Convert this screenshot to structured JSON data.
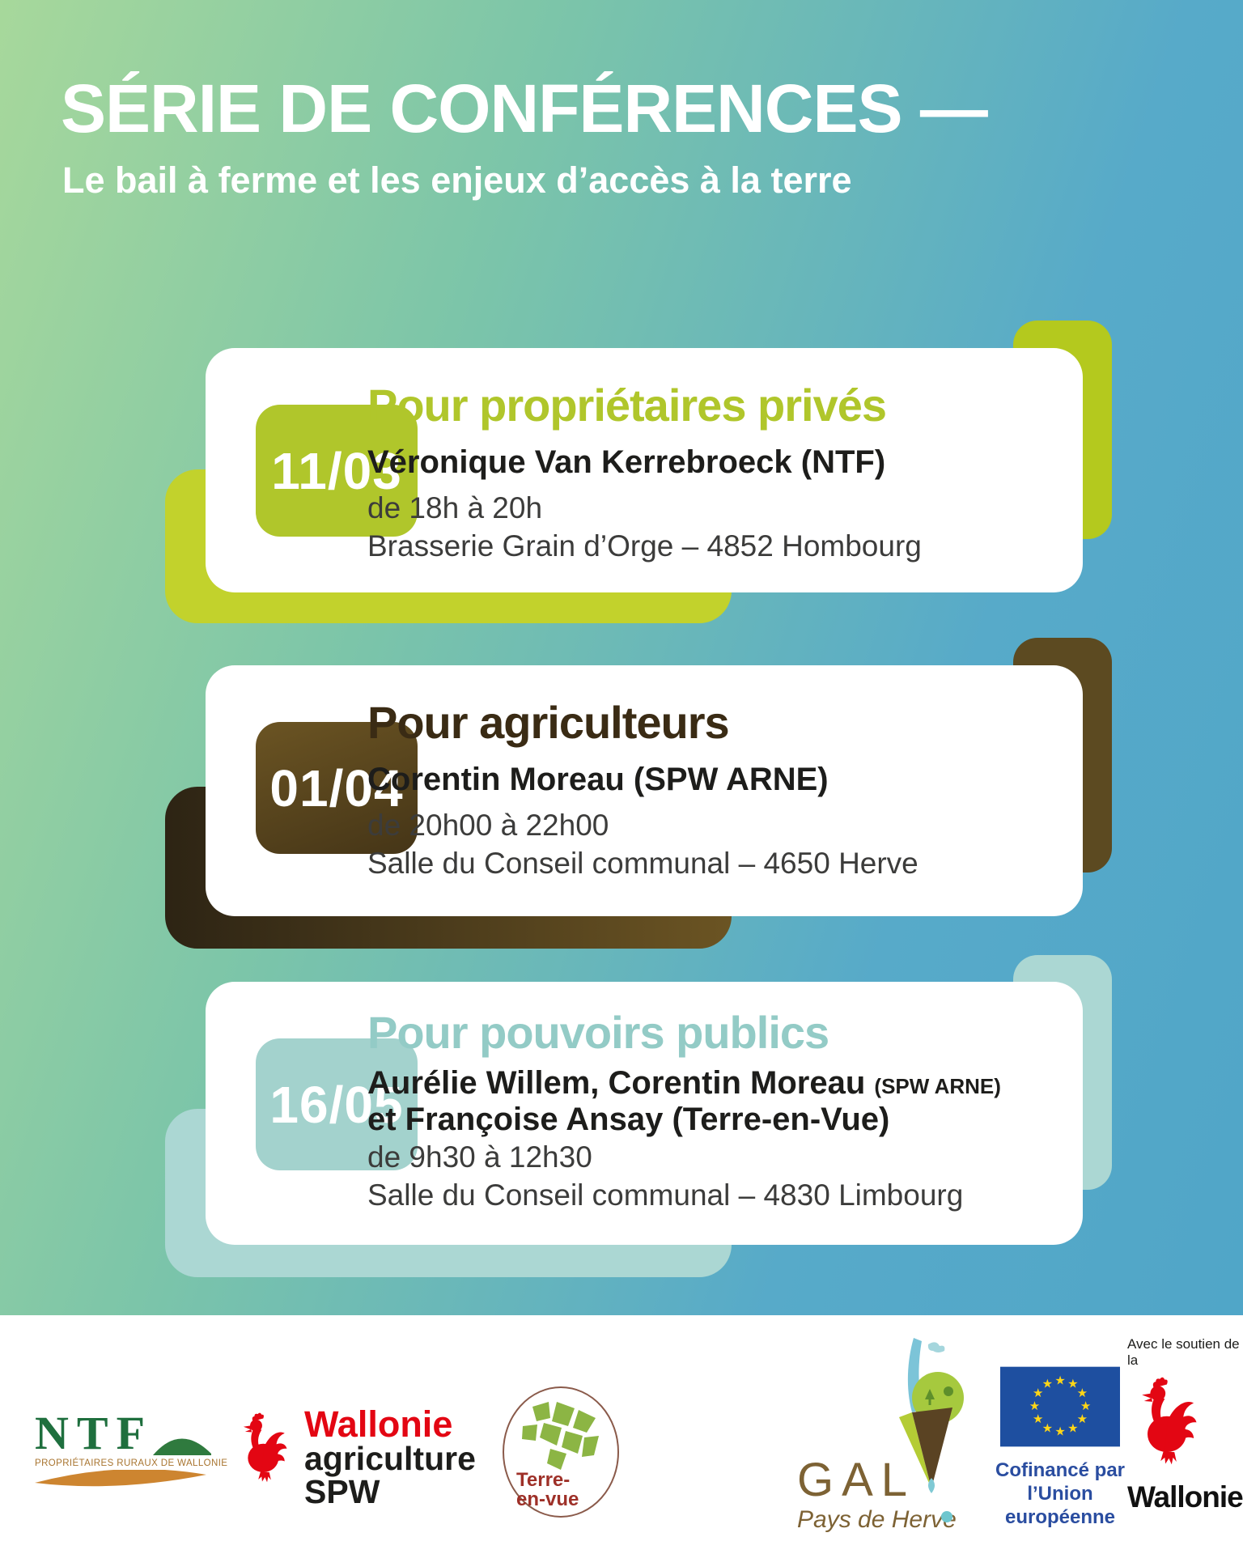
{
  "poster": {
    "title": "SÉRIE DE CONFÉRENCES —",
    "subtitle": "Le bail à ferme et les enjeux d’accès à la terre"
  },
  "cards": [
    {
      "date": "11/03",
      "title": "Pour propriétaires privés",
      "speaker": "Véronique Van Kerrebroeck (NTF)",
      "time": "de 18h à 20h",
      "place": "Brasserie Grain d’Orge – 4852 Hombourg",
      "accent_color": "#b0c62b"
    },
    {
      "date": "01/04",
      "title": "Pour agriculteurs",
      "speaker": "Corentin Moreau (SPW ARNE)",
      "time": "de 20h00 à 22h00",
      "place": "Salle du Conseil communal – 4650 Herve",
      "accent_color": "#53411e"
    },
    {
      "date": "16/05",
      "title": "Pour pouvoirs publics",
      "speaker_line1": "Aurélie Willem, Corentin Moreau",
      "speaker_line1_suffix": "(SPW ARNE)",
      "speaker_line2": "et Françoise Ansay (Terre-en-Vue)",
      "time": "de 9h30 à 12h30",
      "place": "Salle du Conseil communal –  4830 Limbourg",
      "accent_color": "#a2d1cc"
    }
  ],
  "footer": {
    "ntf": {
      "name": "NTF",
      "tagline": "PROPRIÉTAIRES RURAUX DE WALLONIE"
    },
    "spw": {
      "region": "Wallonie",
      "dept": "agriculture",
      "org": "SPW"
    },
    "terre_en_vue": {
      "line1": "Terre-",
      "line2": "en-vue"
    },
    "gal": {
      "name": "GAL",
      "sub": "Pays de Herve"
    },
    "eu": {
      "line1": "Cofinancé par",
      "line2": "l’Union européenne",
      "star_glyph": "★"
    },
    "wallonie": {
      "support_line1": "Avec le soutien de",
      "support_line2": "la",
      "name": "Wallonie"
    }
  },
  "colors": {
    "background_green": "#a7d89b",
    "background_blue": "#4fa5c8",
    "lime": "#b0c62b",
    "brown": "#53411e",
    "teal": "#a2d1cc",
    "text_dark": "#1d1d1b",
    "text_gray": "#3c3c3b",
    "eu_blue": "#1e4fa0",
    "eu_star": "#ffd617",
    "rooster_red": "#e30613",
    "ntf_green": "#1f6f3e",
    "ntf_orange": "#cd8530",
    "gal_brown": "#7d6234",
    "tev_red": "#9e3028"
  }
}
